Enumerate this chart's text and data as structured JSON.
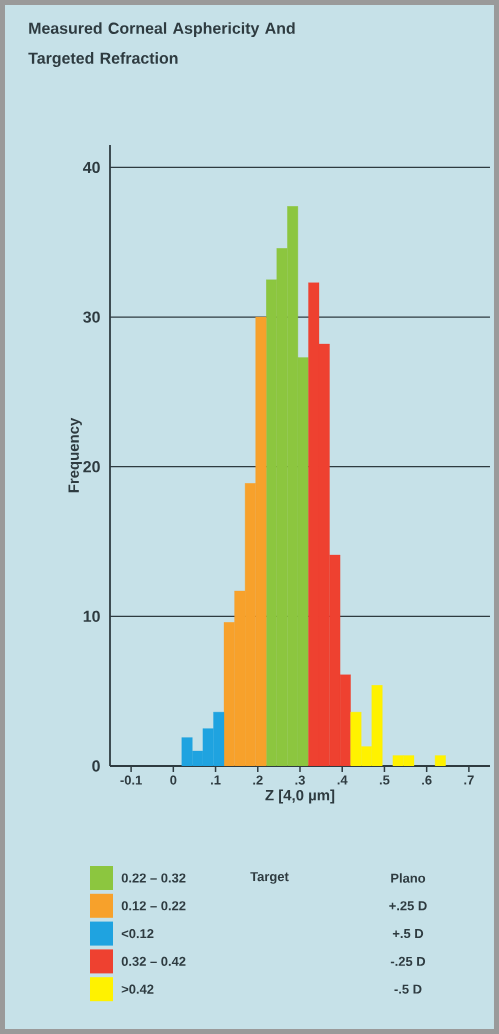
{
  "chart_data": {
    "type": "histogram",
    "title": "Measured Corneal Asphericity And Targeted Refraction",
    "xlabel": "Z [4,0 µm]",
    "ylabel": "Frequency",
    "bins": [
      0.02,
      0.045,
      0.07,
      0.095,
      0.12,
      0.145,
      0.17,
      0.195,
      0.22,
      0.245,
      0.27,
      0.295,
      0.32,
      0.345,
      0.37,
      0.395,
      0.42,
      0.445,
      0.47,
      0.495,
      0.52,
      0.545,
      0.57,
      0.595,
      0.62,
      0.645
    ],
    "series": [
      {
        "name": "0.22 – 0.32",
        "color": "#8cc63f",
        "values": [
          null,
          null,
          null,
          null,
          null,
          null,
          null,
          null,
          32.5,
          34.6,
          37.4,
          27.3,
          null,
          null,
          null,
          null,
          null,
          null,
          null,
          null,
          null,
          null,
          null,
          null,
          null
        ]
      },
      {
        "name": "0.12 – 0.22",
        "color": "#f7a12b",
        "values": [
          null,
          null,
          null,
          null,
          9.6,
          11.7,
          18.9,
          30,
          null,
          null,
          null,
          null,
          null,
          null,
          null,
          null,
          null,
          null,
          null,
          null,
          null,
          null,
          null,
          null,
          null
        ]
      },
      {
        "name": "<0.12",
        "color": "#1fa3e0",
        "values": [
          1.9,
          1,
          2.5,
          3.6,
          null,
          null,
          null,
          null,
          null,
          null,
          null,
          null,
          null,
          null,
          null,
          null,
          null,
          null,
          null,
          null,
          null,
          null,
          null,
          null,
          null
        ]
      },
      {
        "name": "0.32 – 0.42",
        "color": "#ee4130",
        "values": [
          null,
          null,
          null,
          null,
          null,
          null,
          null,
          null,
          null,
          null,
          null,
          null,
          32.3,
          28.2,
          14.1,
          6.1,
          null,
          null,
          null,
          null,
          null,
          null,
          null,
          null,
          null
        ]
      },
      {
        "name": ">0.42",
        "color": "#fff200",
        "values": [
          null,
          null,
          null,
          null,
          null,
          null,
          null,
          null,
          null,
          null,
          null,
          null,
          null,
          null,
          null,
          null,
          3.6,
          1.3,
          5.4,
          0,
          0.7,
          0.7,
          0,
          0,
          0.7
        ]
      }
    ],
    "xlim": [
      -0.15,
      0.75
    ],
    "ylim": [
      0,
      41.5
    ],
    "xticks": [
      {
        "value": -0.1,
        "label": "-0.1"
      },
      0,
      {
        "value": 0.1,
        "label": ".1"
      },
      {
        "value": 0.2,
        "label": ".2"
      },
      {
        "value": 0.3,
        "label": ".3"
      },
      {
        "value": 0.4,
        "label": ".4"
      },
      {
        "value": 0.5,
        "label": ".5"
      },
      {
        "value": 0.6,
        "label": ".6"
      },
      {
        "value": 0.7,
        "label": ".7"
      }
    ],
    "yticks": [
      0,
      10,
      20,
      30,
      40
    ],
    "grid": "y",
    "legend": "bottom",
    "annotations": [
      "Target",
      "Plano",
      "+.25 D",
      "+.5 D",
      "-.25 D",
      "-.5 D"
    ]
  }
}
